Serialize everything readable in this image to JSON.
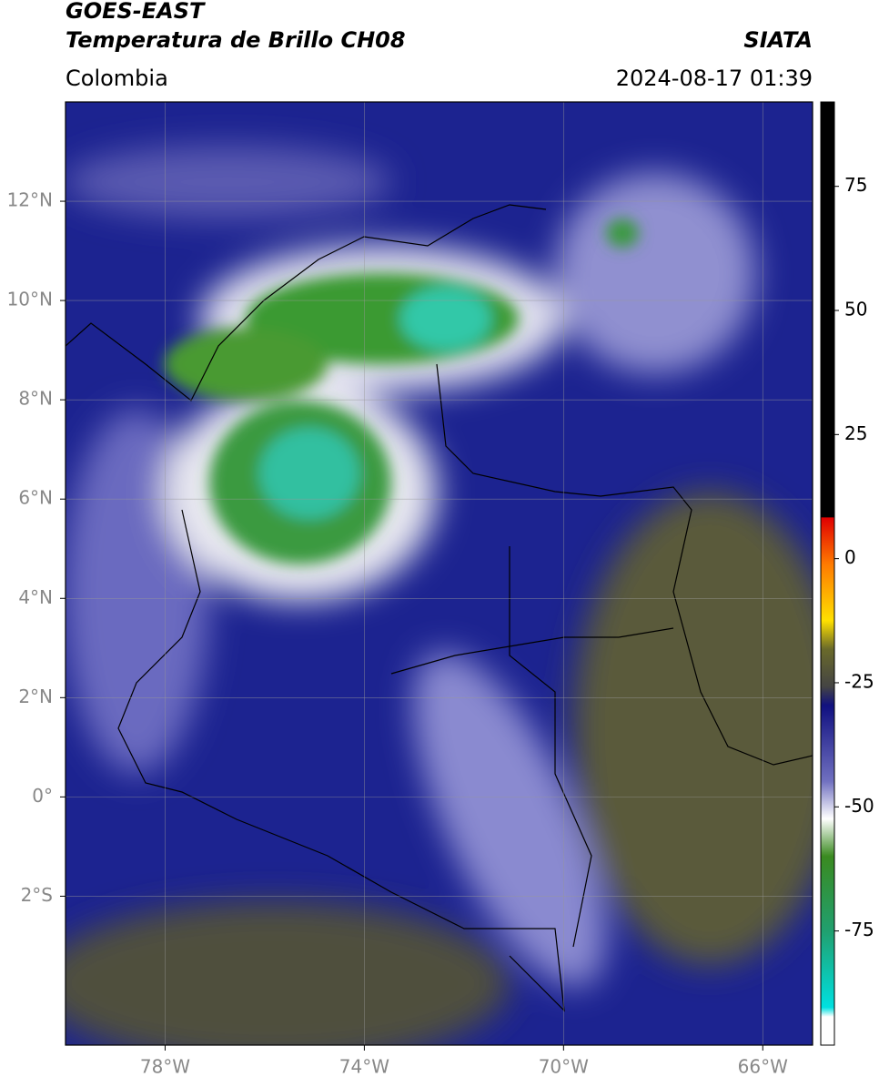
{
  "header": {
    "title": "GOES-EAST",
    "subtitle": "Temperatura de Brillo CH08",
    "source": "SIATA",
    "region": "Colombia",
    "timestamp": "2024-08-17 01:39"
  },
  "map": {
    "xlim": [
      -80,
      -65
    ],
    "ylim": [
      -5,
      14
    ],
    "grid": true,
    "xticks": [
      {
        "value": -78,
        "label": "78°W"
      },
      {
        "value": -74,
        "label": "74°W"
      },
      {
        "value": -70,
        "label": "70°W"
      },
      {
        "value": -66,
        "label": "66°W"
      }
    ],
    "yticks": [
      {
        "value": 12,
        "label": "12°N"
      },
      {
        "value": 10,
        "label": "10°N"
      },
      {
        "value": 8,
        "label": "8°N"
      },
      {
        "value": 6,
        "label": "6°N"
      },
      {
        "value": 4,
        "label": "4°N"
      },
      {
        "value": 2,
        "label": "2°N"
      },
      {
        "value": 0,
        "label": "0°"
      },
      {
        "value": -2,
        "label": "2°S"
      }
    ]
  },
  "colorbar": {
    "lim": [
      -98,
      92
    ],
    "ticks": [
      75,
      50,
      25,
      0,
      -25,
      -50,
      -75
    ]
  }
}
